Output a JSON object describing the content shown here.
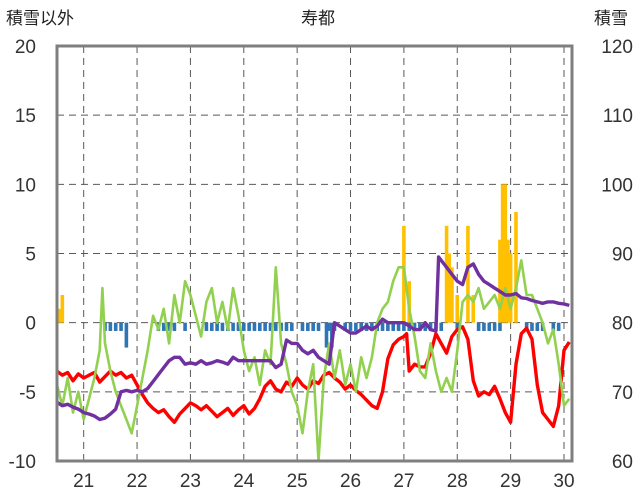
{
  "chart_data": {
    "type": "line",
    "title": "寿都",
    "ylabel_left": "積雪以外",
    "ylabel_right": "積雪",
    "x_ticks": [
      "21",
      "22",
      "23",
      "24",
      "25",
      "26",
      "27",
      "28",
      "29",
      "30"
    ],
    "x_range": [
      20.5,
      30.15
    ],
    "ylim_left": [
      -10,
      20
    ],
    "ylim_right": [
      60,
      120
    ],
    "y_ticks_left": [
      "20",
      "15",
      "10",
      "5",
      "0",
      "-5",
      "-10"
    ],
    "y_ticks_right": [
      "120",
      "110",
      "100",
      "90",
      "80",
      "70",
      "60"
    ],
    "grid": true,
    "colors": {
      "temperature": "#ff0000",
      "green_series": "#92d050",
      "snow_depth": "#7030a0",
      "precipitation": "#ffc000",
      "snow_change_negative": "#2e75b6",
      "frame": "#7f7f7f"
    },
    "series": [
      {
        "key": "red",
        "axis": "left",
        "x": [
          20.5,
          20.6,
          20.7,
          20.8,
          20.9,
          21.0,
          21.1,
          21.2,
          21.3,
          21.4,
          21.5,
          21.6,
          21.7,
          21.8,
          21.9,
          22.0,
          22.1,
          22.2,
          22.3,
          22.4,
          22.5,
          22.6,
          22.7,
          22.8,
          22.9,
          23.0,
          23.1,
          23.2,
          23.3,
          23.4,
          23.5,
          23.6,
          23.7,
          23.8,
          23.9,
          24.0,
          24.1,
          24.2,
          24.3,
          24.4,
          24.5,
          24.6,
          24.7,
          24.8,
          24.9,
          25.0,
          25.1,
          25.2,
          25.3,
          25.4,
          25.5,
          25.6,
          25.7,
          25.8,
          25.9,
          26.0,
          26.1,
          26.2,
          26.3,
          26.4,
          26.5,
          26.6,
          26.7,
          26.8,
          26.9,
          27.0,
          27.05,
          27.1,
          27.2,
          27.3,
          27.4,
          27.5,
          27.6,
          27.7,
          27.8,
          27.9,
          28.0,
          28.1,
          28.2,
          28.3,
          28.4,
          28.5,
          28.6,
          28.7,
          28.8,
          28.9,
          29.0,
          29.1,
          29.2,
          29.3,
          29.4,
          29.5,
          29.6,
          29.7,
          29.8,
          29.9,
          30.0,
          30.1
        ],
        "values": [
          -3.5,
          -3.8,
          -3.6,
          -4.2,
          -3.7,
          -4.0,
          -3.8,
          -3.6,
          -4.3,
          -3.9,
          -3.5,
          -3.8,
          -3.6,
          -4.0,
          -3.8,
          -4.5,
          -5.2,
          -5.8,
          -6.2,
          -6.5,
          -6.3,
          -6.8,
          -7.2,
          -6.6,
          -6.2,
          -5.8,
          -6.0,
          -6.3,
          -6.0,
          -6.4,
          -6.8,
          -6.5,
          -6.2,
          -6.7,
          -6.3,
          -6.0,
          -6.6,
          -6.2,
          -5.5,
          -4.6,
          -4.2,
          -4.8,
          -5.0,
          -4.3,
          -4.6,
          -4.0,
          -4.5,
          -4.8,
          -4.2,
          -4.4,
          -3.8,
          -3.6,
          -4.0,
          -4.3,
          -4.8,
          -4.5,
          -4.9,
          -5.2,
          -5.6,
          -6.0,
          -6.2,
          -5.0,
          -2.6,
          -1.6,
          -1.2,
          -1.0,
          -0.8,
          -3.5,
          -3.0,
          -3.2,
          -3.2,
          -2.2,
          -0.8,
          -1.5,
          -2.2,
          -1.0,
          -0.5,
          -0.3,
          -1.2,
          -4.2,
          -5.3,
          -5.0,
          -5.2,
          -4.6,
          -5.5,
          -6.5,
          -7.2,
          -3.0,
          -0.8,
          -0.4,
          -1.2,
          -4.5,
          -6.5,
          -7.0,
          -7.5,
          -6.0,
          -2.0,
          -1.4
        ]
      },
      {
        "key": "green",
        "axis": "left",
        "x": [
          20.5,
          20.6,
          20.7,
          20.8,
          20.9,
          21.0,
          21.1,
          21.2,
          21.3,
          21.35,
          21.4,
          21.5,
          21.6,
          21.7,
          21.8,
          21.9,
          22.0,
          22.1,
          22.2,
          22.3,
          22.4,
          22.5,
          22.6,
          22.7,
          22.8,
          22.9,
          23.0,
          23.1,
          23.2,
          23.3,
          23.4,
          23.5,
          23.6,
          23.7,
          23.8,
          23.9,
          24.0,
          24.1,
          24.2,
          24.3,
          24.4,
          24.5,
          24.6,
          24.7,
          24.8,
          24.9,
          25.0,
          25.1,
          25.2,
          25.3,
          25.4,
          25.5,
          25.6,
          25.7,
          25.8,
          25.9,
          26.0,
          26.1,
          26.2,
          26.3,
          26.4,
          26.5,
          26.6,
          26.7,
          26.8,
          26.9,
          27.0,
          27.1,
          27.2,
          27.3,
          27.4,
          27.5,
          27.6,
          27.7,
          27.8,
          27.9,
          28.0,
          28.1,
          28.2,
          28.3,
          28.4,
          28.5,
          28.6,
          28.7,
          28.8,
          28.9,
          29.0,
          29.1,
          29.2,
          29.3,
          29.4,
          29.5,
          29.6,
          29.7,
          29.8,
          29.9,
          30.0,
          30.1
        ],
        "values": [
          -4.5,
          -6.0,
          -4.0,
          -6.5,
          -5.0,
          -7.0,
          -5.5,
          -4.0,
          -2.0,
          2.5,
          -1.5,
          -3.5,
          -5.0,
          -6.0,
          -7.0,
          -8.0,
          -6.0,
          -4.0,
          -2.0,
          0.5,
          -0.5,
          1.0,
          -1.5,
          2.0,
          0.0,
          3.0,
          2.0,
          0.5,
          -1.0,
          1.5,
          2.5,
          0.0,
          1.5,
          -0.5,
          2.5,
          0.5,
          -2.0,
          -3.5,
          -2.5,
          -4.5,
          -2.0,
          -3.0,
          4.0,
          -1.5,
          -3.0,
          -5.0,
          -6.0,
          -8.0,
          -5.0,
          -3.0,
          -10.0,
          -4.0,
          -1.5,
          -4.0,
          -2.0,
          -4.5,
          -3.0,
          -5.0,
          -2.5,
          -4.0,
          -2.5,
          0.0,
          1.0,
          1.5,
          3.0,
          4.0,
          4.0,
          1.0,
          -1.0,
          -3.5,
          -4.0,
          -1.5,
          -3.5,
          -5.0,
          -4.0,
          -5.0,
          -2.0,
          1.5,
          2.0,
          1.5,
          2.5,
          1.0,
          1.5,
          2.0,
          1.0,
          2.5,
          1.0,
          2.5,
          4.5,
          2.0,
          2.0,
          1.0,
          0.0,
          -1.5,
          -0.5,
          -3.0,
          -6.0,
          -5.5
        ]
      },
      {
        "key": "purple",
        "axis": "right",
        "x": [
          20.5,
          20.6,
          20.7,
          20.8,
          20.9,
          21.0,
          21.1,
          21.2,
          21.3,
          21.4,
          21.5,
          21.6,
          21.7,
          21.8,
          21.9,
          22.0,
          22.1,
          22.2,
          22.3,
          22.4,
          22.5,
          22.6,
          22.7,
          22.8,
          22.9,
          23.0,
          23.1,
          23.2,
          23.3,
          23.4,
          23.5,
          23.6,
          23.7,
          23.8,
          23.9,
          24.0,
          24.1,
          24.2,
          24.3,
          24.4,
          24.5,
          24.6,
          24.7,
          24.8,
          24.9,
          25.0,
          25.1,
          25.2,
          25.3,
          25.4,
          25.5,
          25.6,
          25.7,
          25.8,
          25.9,
          26.0,
          26.1,
          26.2,
          26.3,
          26.4,
          26.5,
          26.6,
          26.7,
          26.8,
          26.9,
          27.0,
          27.1,
          27.2,
          27.3,
          27.4,
          27.5,
          27.6,
          27.65,
          27.7,
          27.8,
          27.9,
          28.0,
          28.1,
          28.2,
          28.3,
          28.4,
          28.5,
          28.6,
          28.7,
          28.8,
          28.9,
          29.0,
          29.1,
          29.2,
          29.3,
          29.4,
          29.5,
          29.6,
          29.7,
          29.8,
          29.9,
          30.0,
          30.1
        ],
        "values": [
          68.5,
          68.0,
          68.2,
          67.8,
          67.5,
          67.0,
          66.8,
          66.5,
          66.0,
          66.2,
          66.8,
          67.5,
          70.0,
          70.2,
          70.0,
          70.2,
          70.0,
          70.5,
          71.5,
          72.5,
          73.5,
          74.5,
          75.0,
          75.0,
          74.0,
          74.2,
          74.0,
          74.5,
          74.0,
          74.2,
          74.5,
          74.3,
          74.0,
          75.0,
          74.5,
          74.5,
          74.5,
          74.5,
          74.5,
          74.5,
          74.5,
          73.5,
          74.0,
          77.5,
          77.0,
          77.0,
          76.0,
          75.5,
          76.0,
          75.0,
          74.5,
          74.0,
          80.0,
          79.5,
          79.0,
          78.5,
          78.5,
          79.0,
          79.5,
          79.0,
          79.5,
          80.5,
          80.0,
          80.0,
          80.0,
          80.0,
          79.5,
          79.0,
          79.0,
          80.0,
          79.0,
          78.8,
          89.5,
          89.0,
          88.0,
          87.0,
          86.0,
          85.5,
          88.0,
          88.5,
          87.0,
          86.0,
          85.5,
          85.0,
          84.5,
          84.0,
          84.0,
          84.2,
          83.6,
          83.5,
          83.2,
          83.0,
          82.8,
          83.0,
          83.0,
          82.8,
          82.7,
          82.5
        ]
      }
    ],
    "bars": [
      {
        "key": "orange",
        "axis": "left",
        "x": [
          20.55,
          20.6,
          27.0,
          27.1,
          27.8,
          27.85,
          27.9,
          28.0,
          28.2,
          28.3,
          28.8,
          28.85,
          28.9,
          28.95,
          29.0,
          29.1
        ],
        "values": [
          1.0,
          2.0,
          7.0,
          3.0,
          7.0,
          5.0,
          4.0,
          2.0,
          7.0,
          2.0,
          6.0,
          10.0,
          10.0,
          6.0,
          5.0,
          8.0
        ]
      },
      {
        "key": "blue",
        "axis": "left",
        "x": [
          21.4,
          21.5,
          21.6,
          21.7,
          21.8,
          22.4,
          22.5,
          22.6,
          22.7,
          22.9,
          23.3,
          23.4,
          23.5,
          23.6,
          23.7,
          23.8,
          23.9,
          24.0,
          24.1,
          24.2,
          24.3,
          24.4,
          24.5,
          24.6,
          24.7,
          24.8,
          24.9,
          25.1,
          25.2,
          25.3,
          25.4,
          25.55,
          25.6,
          25.65,
          25.7,
          25.9,
          26.0,
          26.1,
          26.2,
          26.3,
          26.4,
          26.5,
          26.6,
          26.7,
          26.8,
          26.9,
          27.0,
          27.1,
          27.2,
          27.3,
          27.4,
          27.5,
          27.6,
          27.7,
          28.0,
          28.4,
          28.5,
          28.6,
          28.7,
          28.8,
          29.3,
          29.4,
          29.5,
          29.6,
          29.8,
          29.9
        ],
        "values": [
          -0.6,
          -0.6,
          -0.6,
          -0.6,
          -1.8,
          -0.6,
          -0.6,
          -0.6,
          -0.6,
          -0.6,
          -0.6,
          -0.6,
          -0.6,
          -0.6,
          -0.6,
          -0.6,
          -0.6,
          -0.6,
          -0.6,
          -0.6,
          -0.6,
          -0.6,
          -0.6,
          -0.6,
          -0.6,
          -0.6,
          -0.6,
          -0.6,
          -0.6,
          -0.6,
          -0.6,
          -1.8,
          -0.6,
          -1.8,
          -0.6,
          -0.6,
          -0.6,
          -0.6,
          -0.6,
          -0.6,
          -0.6,
          -0.6,
          -0.6,
          -0.6,
          -0.6,
          -0.6,
          -0.6,
          -0.6,
          -0.6,
          -0.6,
          -0.6,
          -0.6,
          -0.6,
          -0.6,
          -0.6,
          -0.6,
          -0.6,
          -0.6,
          -0.6,
          -0.6,
          -0.6,
          -0.6,
          -0.6,
          -0.6,
          -0.6,
          -0.6
        ]
      }
    ]
  }
}
